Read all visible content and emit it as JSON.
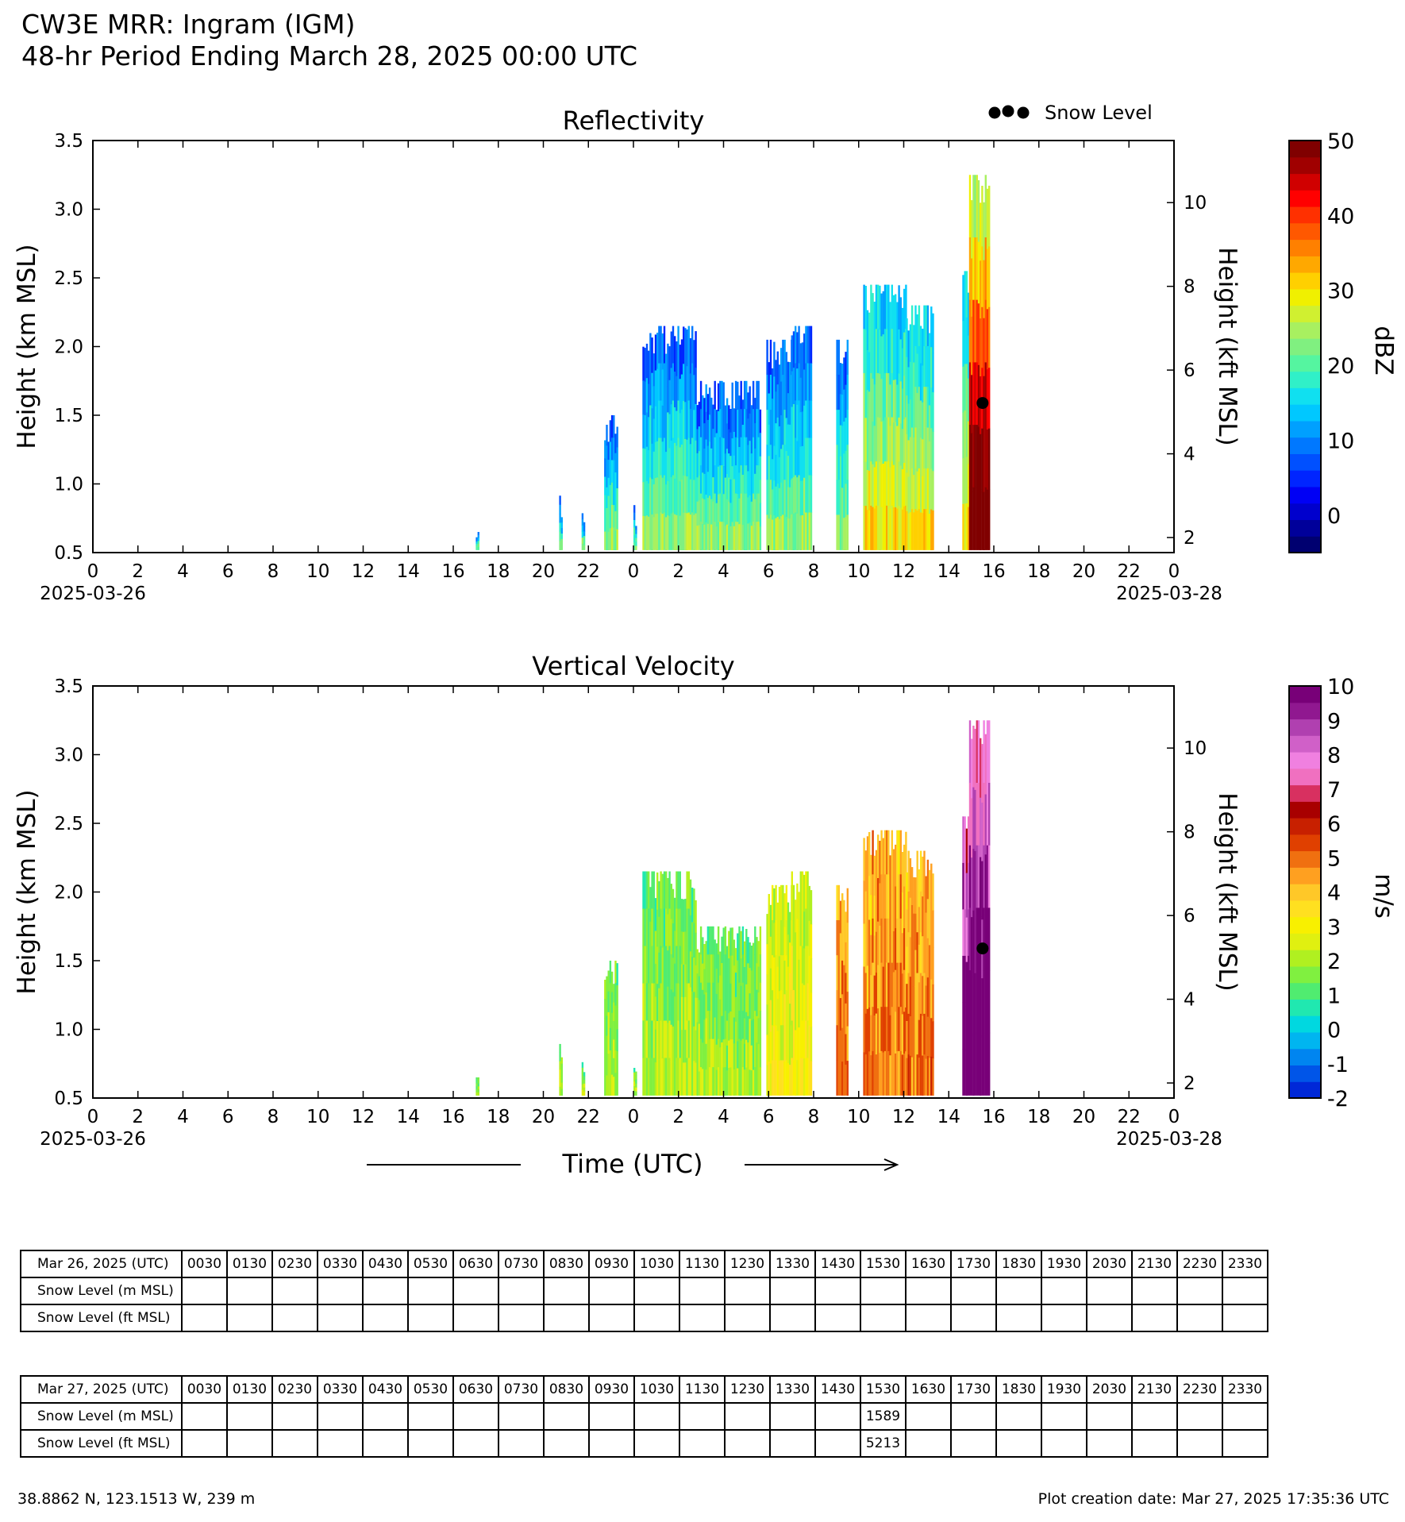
{
  "header": {
    "title": "CW3E MRR: Ingram (IGM)",
    "subtitle": "48-hr Period Ending March 28, 2025 00:00 UTC"
  },
  "legend": {
    "label": "Snow Level",
    "marker": "black-dots"
  },
  "panels": [
    {
      "title": "Reflectivity",
      "colorbar_label": "dBZ",
      "colorbar_ticks": [
        "50",
        "40",
        "30",
        "20",
        "10",
        "0"
      ]
    },
    {
      "title": "Vertical Velocity",
      "colorbar_label": "m/s",
      "colorbar_ticks": [
        "10",
        "9",
        "8",
        "7",
        "6",
        "5",
        "4",
        "3",
        "2",
        "1",
        "0",
        "-1",
        "-2"
      ]
    }
  ],
  "axes": {
    "ylabel_left": "Height (km MSL)",
    "ylabel_right": "Height (kft MSL)",
    "yticks_left": [
      "0.5",
      "1.0",
      "1.5",
      "2.0",
      "2.5",
      "3.0",
      "3.5"
    ],
    "yticks_right": [
      "2",
      "4",
      "6",
      "8",
      "10"
    ],
    "xticks": [
      "0",
      "2",
      "4",
      "6",
      "8",
      "10",
      "12",
      "14",
      "16",
      "18",
      "20",
      "22",
      "0",
      "2",
      "4",
      "6",
      "8",
      "10",
      "12",
      "14",
      "16",
      "18",
      "20",
      "22",
      "0"
    ],
    "date_start": "2025-03-26",
    "date_end": "2025-03-28",
    "xlabel": "Time (UTC)"
  },
  "chart_data": [
    {
      "type": "heatmap",
      "title": "Reflectivity",
      "ylabel": "Height (km MSL)",
      "y2label": "Height (kft MSL)",
      "ylim": [
        0.5,
        3.5
      ],
      "y2lim": [
        1.64,
        11.48
      ],
      "x_unit": "hours since 2025-03-26 00:00 UTC",
      "xlim": [
        0,
        48
      ],
      "colorbar": {
        "label": "dBZ",
        "range": [
          -5,
          50
        ],
        "ticks": [
          0,
          10,
          20,
          30,
          40,
          50
        ]
      },
      "echo_segments": [
        {
          "x_start": 17.0,
          "x_end": 17.1,
          "top_km": 0.65
        },
        {
          "x_start": 20.7,
          "x_end": 20.8,
          "top_km": 0.95
        },
        {
          "x_start": 21.7,
          "x_end": 21.8,
          "top_km": 0.85
        },
        {
          "x_start": 22.7,
          "x_end": 23.3,
          "top_km": 1.5
        },
        {
          "x_start": 24.0,
          "x_end": 24.1,
          "top_km": 0.85
        },
        {
          "x_start": 24.4,
          "x_end": 26.8,
          "top_km": 2.15
        },
        {
          "x_start": 26.8,
          "x_end": 29.6,
          "top_km": 1.75
        },
        {
          "x_start": 29.9,
          "x_end": 31.0,
          "top_km": 2.05
        },
        {
          "x_start": 31.0,
          "x_end": 31.9,
          "top_km": 2.15
        },
        {
          "x_start": 33.0,
          "x_end": 33.5,
          "top_km": 2.05
        },
        {
          "x_start": 34.2,
          "x_end": 36.1,
          "top_km": 2.45
        },
        {
          "x_start": 36.1,
          "x_end": 37.3,
          "top_km": 2.3
        },
        {
          "x_start": 38.6,
          "x_end": 38.9,
          "top_km": 2.55
        },
        {
          "x_start": 38.9,
          "x_end": 39.8,
          "top_km": 3.25
        }
      ],
      "snow_level": [
        {
          "x": 39.5,
          "height_km": 1.589
        }
      ]
    },
    {
      "type": "heatmap",
      "title": "Vertical Velocity",
      "ylabel": "Height (km MSL)",
      "y2label": "Height (kft MSL)",
      "ylim": [
        0.5,
        3.5
      ],
      "y2lim": [
        1.64,
        11.48
      ],
      "x_unit": "hours since 2025-03-26 00:00 UTC",
      "xlim": [
        0,
        48
      ],
      "colorbar": {
        "label": "m/s",
        "range": [
          -2,
          10
        ],
        "ticks": [
          -2,
          -1,
          0,
          1,
          2,
          3,
          4,
          5,
          6,
          7,
          8,
          9,
          10
        ]
      },
      "echo_segments": [
        {
          "x_start": 17.0,
          "x_end": 17.1,
          "top_km": 0.65
        },
        {
          "x_start": 20.7,
          "x_end": 20.8,
          "top_km": 0.95
        },
        {
          "x_start": 21.7,
          "x_end": 21.8,
          "top_km": 0.85
        },
        {
          "x_start": 22.7,
          "x_end": 23.3,
          "top_km": 1.5
        },
        {
          "x_start": 24.0,
          "x_end": 24.1,
          "top_km": 0.85
        },
        {
          "x_start": 24.4,
          "x_end": 26.8,
          "top_km": 2.15
        },
        {
          "x_start": 26.8,
          "x_end": 29.6,
          "top_km": 1.75
        },
        {
          "x_start": 29.9,
          "x_end": 31.0,
          "top_km": 2.05
        },
        {
          "x_start": 31.0,
          "x_end": 31.9,
          "top_km": 2.15
        },
        {
          "x_start": 33.0,
          "x_end": 33.5,
          "top_km": 2.05
        },
        {
          "x_start": 34.2,
          "x_end": 36.1,
          "top_km": 2.45
        },
        {
          "x_start": 36.1,
          "x_end": 37.3,
          "top_km": 2.3
        },
        {
          "x_start": 38.6,
          "x_end": 38.9,
          "top_km": 2.55
        },
        {
          "x_start": 38.9,
          "x_end": 39.8,
          "top_km": 3.25
        }
      ],
      "snow_level": [
        {
          "x": 39.5,
          "height_km": 1.589
        }
      ]
    },
    {
      "type": "table",
      "date_label": "Mar 26, 2025 (UTC)",
      "times": [
        "0030",
        "0130",
        "0230",
        "0330",
        "0430",
        "0530",
        "0630",
        "0730",
        "0830",
        "0930",
        "1030",
        "1130",
        "1230",
        "1330",
        "1430",
        "1530",
        "1630",
        "1730",
        "1830",
        "1930",
        "2030",
        "2130",
        "2230",
        "2330"
      ],
      "rows": [
        {
          "label": "Snow Level (m MSL)",
          "values": [
            "",
            "",
            "",
            "",
            "",
            "",
            "",
            "",
            "",
            "",
            "",
            "",
            "",
            "",
            "",
            "",
            "",
            "",
            "",
            "",
            "",
            "",
            "",
            ""
          ]
        },
        {
          "label": "Snow Level (ft MSL)",
          "values": [
            "",
            "",
            "",
            "",
            "",
            "",
            "",
            "",
            "",
            "",
            "",
            "",
            "",
            "",
            "",
            "",
            "",
            "",
            "",
            "",
            "",
            "",
            "",
            ""
          ]
        }
      ]
    },
    {
      "type": "table",
      "date_label": "Mar 27, 2025 (UTC)",
      "times": [
        "0030",
        "0130",
        "0230",
        "0330",
        "0430",
        "0530",
        "0630",
        "0730",
        "0830",
        "0930",
        "1030",
        "1130",
        "1230",
        "1330",
        "1430",
        "1530",
        "1630",
        "1730",
        "1830",
        "1930",
        "2030",
        "2130",
        "2230",
        "2330"
      ],
      "rows": [
        {
          "label": "Snow Level (m MSL)",
          "values": [
            "",
            "",
            "",
            "",
            "",
            "",
            "",
            "",
            "",
            "",
            "",
            "",
            "",
            "",
            "",
            "1589",
            "",
            "",
            "",
            "",
            "",
            "",
            "",
            ""
          ]
        },
        {
          "label": "Snow Level (ft MSL)",
          "values": [
            "",
            "",
            "",
            "",
            "",
            "",
            "",
            "",
            "",
            "",
            "",
            "",
            "",
            "",
            "",
            "5213",
            "",
            "",
            "",
            "",
            "",
            "",
            "",
            ""
          ]
        }
      ]
    }
  ],
  "footer": {
    "location": "38.8862 N, 123.1513 W, 239 m",
    "creation": "Plot creation date: Mar 27, 2025 17:35:36 UTC"
  },
  "colors": {
    "reflectivity_scale": [
      "#000070",
      "#00009a",
      "#0000cd",
      "#0000f5",
      "#0025ff",
      "#0050ff",
      "#0078ff",
      "#00a0ff",
      "#00c8ff",
      "#10e0f0",
      "#30f0c8",
      "#55f5a0",
      "#80f080",
      "#a8f060",
      "#d0f030",
      "#f0f000",
      "#ffd000",
      "#ffa800",
      "#ff8000",
      "#ff5800",
      "#ff3000",
      "#ff0000",
      "#d00000",
      "#a00000",
      "#800000"
    ],
    "velocity_scale": [
      "#0028d8",
      "#0055e8",
      "#0085f0",
      "#00b5f0",
      "#00d8e0",
      "#20e8b0",
      "#50ec70",
      "#80f040",
      "#b0f020",
      "#e0f010",
      "#f8f000",
      "#ffe020",
      "#ffc828",
      "#ffa020",
      "#f07010",
      "#e04000",
      "#c82000",
      "#a80000",
      "#d83060",
      "#f070c0",
      "#f080e0",
      "#d060c8",
      "#b040b0",
      "#901890",
      "#780078"
    ]
  }
}
